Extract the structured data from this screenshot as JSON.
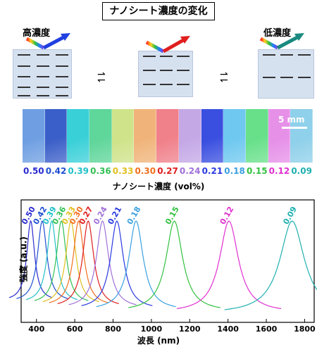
{
  "title": "ナノシート濃度の変化",
  "schematic": {
    "high_label": "高濃度",
    "low_label": "低濃度"
  },
  "scale_bar_label": "5 mm",
  "strip_colors": [
    "#6f9fe2",
    "#3b5fc8",
    "#3ad0d8",
    "#5fd69a",
    "#cfe38a",
    "#f0b47a",
    "#f0808a",
    "#c4a8e6",
    "#3a4fe0",
    "#6fc8ef",
    "#68e08a",
    "#e690e8",
    "#8fd0ea"
  ],
  "concentration_label": "ナノシート濃度 (vol%)",
  "chart_data": {
    "type": "line",
    "xlabel": "波長 (nm)",
    "ylabel": "強度 (a.u.)",
    "xlim": [
      320,
      1850
    ],
    "xticks": [
      400,
      600,
      800,
      1000,
      1200,
      1400,
      1600,
      1800
    ],
    "series": [
      {
        "name": "0.50",
        "color": "#2a2ad0",
        "peak": 370,
        "width": 35
      },
      {
        "name": "0.42",
        "color": "#1f4fd0",
        "peak": 430,
        "width": 42
      },
      {
        "name": "0.39",
        "color": "#22c0c8",
        "peak": 480,
        "width": 42
      },
      {
        "name": "0.36",
        "color": "#33c055",
        "peak": 530,
        "width": 44
      },
      {
        "name": "0.33",
        "color": "#e0c020",
        "peak": 580,
        "width": 46
      },
      {
        "name": "0.30",
        "color": "#f07020",
        "peak": 620,
        "width": 48
      },
      {
        "name": "0.27",
        "color": "#e01e1e",
        "peak": 670,
        "width": 50
      },
      {
        "name": "0.24",
        "color": "#a070d8",
        "peak": 745,
        "width": 55
      },
      {
        "name": "0.21",
        "color": "#2a3ae0",
        "peak": 820,
        "width": 58
      },
      {
        "name": "0.18",
        "color": "#3aa0e0",
        "peak": 920,
        "width": 65
      },
      {
        "name": "0.15",
        "color": "#33c040",
        "peak": 1120,
        "width": 75
      },
      {
        "name": "0.12",
        "color": "#e030d0",
        "peak": 1405,
        "width": 85
      },
      {
        "name": "0.09",
        "color": "#20b0b0",
        "peak": 1735,
        "width": 110
      }
    ]
  }
}
